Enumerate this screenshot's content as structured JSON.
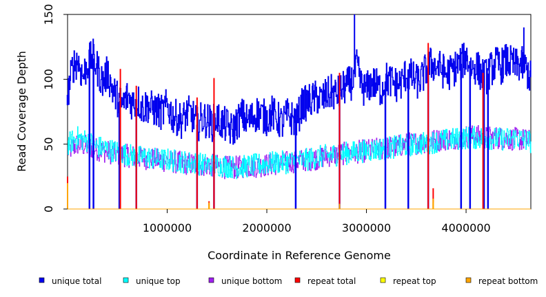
{
  "chart_data": {
    "type": "line",
    "title": "",
    "xlabel": "Coordinate in Reference Genome",
    "ylabel": "Read Coverage Depth",
    "xlim": [
      0,
      4650000
    ],
    "ylim": [
      0,
      150
    ],
    "x_ticks": [
      1000000,
      2000000,
      3000000,
      4000000
    ],
    "x_tick_labels": [
      "1000000",
      "2000000",
      "3000000",
      "4000000"
    ],
    "y_ticks": [
      0,
      50,
      100,
      150
    ],
    "y_tick_labels": [
      "0",
      "50",
      "100",
      "150"
    ],
    "grid": false,
    "legend_position": "bottom",
    "series": [
      {
        "name": "unique total",
        "color": "#0000ee",
        "points": [
          [
            0,
            88
          ],
          [
            50000,
            110
          ],
          [
            100000,
            115
          ],
          [
            150000,
            102
          ],
          [
            200000,
            112
          ],
          [
            250000,
            118
          ],
          [
            300000,
            108
          ],
          [
            350000,
            98
          ],
          [
            400000,
            105
          ],
          [
            450000,
            92
          ],
          [
            500000,
            85
          ],
          [
            550000,
            80
          ],
          [
            600000,
            87
          ],
          [
            650000,
            82
          ],
          [
            700000,
            84
          ],
          [
            750000,
            78
          ],
          [
            800000,
            80
          ],
          [
            850000,
            77
          ],
          [
            900000,
            76
          ],
          [
            950000,
            74
          ],
          [
            1000000,
            80
          ],
          [
            1050000,
            72
          ],
          [
            1100000,
            70
          ],
          [
            1150000,
            68
          ],
          [
            1200000,
            74
          ],
          [
            1250000,
            72
          ],
          [
            1300000,
            65
          ],
          [
            1350000,
            70
          ],
          [
            1400000,
            68
          ],
          [
            1450000,
            66
          ],
          [
            1500000,
            70
          ],
          [
            1550000,
            66
          ],
          [
            1600000,
            64
          ],
          [
            1650000,
            60
          ],
          [
            1700000,
            67
          ],
          [
            1750000,
            72
          ],
          [
            1800000,
            68
          ],
          [
            1850000,
            70
          ],
          [
            1900000,
            74
          ],
          [
            1950000,
            72
          ],
          [
            2000000,
            70
          ],
          [
            2050000,
            74
          ],
          [
            2100000,
            70
          ],
          [
            2150000,
            66
          ],
          [
            2200000,
            72
          ],
          [
            2250000,
            70
          ],
          [
            2300000,
            68
          ],
          [
            2350000,
            80
          ],
          [
            2400000,
            82
          ],
          [
            2450000,
            84
          ],
          [
            2500000,
            86
          ],
          [
            2550000,
            84
          ],
          [
            2600000,
            88
          ],
          [
            2650000,
            90
          ],
          [
            2700000,
            88
          ],
          [
            2750000,
            92
          ],
          [
            2800000,
            95
          ],
          [
            2850000,
            98
          ],
          [
            2900000,
            110
          ],
          [
            2950000,
            94
          ],
          [
            3000000,
            92
          ],
          [
            3050000,
            98
          ],
          [
            3100000,
            95
          ],
          [
            3150000,
            92
          ],
          [
            3200000,
            100
          ],
          [
            3250000,
            98
          ],
          [
            3300000,
            96
          ],
          [
            3350000,
            97
          ],
          [
            3400000,
            105
          ],
          [
            3450000,
            102
          ],
          [
            3500000,
            98
          ],
          [
            3550000,
            100
          ],
          [
            3600000,
            108
          ],
          [
            3650000,
            112
          ],
          [
            3700000,
            110
          ],
          [
            3750000,
            108
          ],
          [
            3800000,
            104
          ],
          [
            3850000,
            106
          ],
          [
            3900000,
            110
          ],
          [
            3950000,
            112
          ],
          [
            4000000,
            118
          ],
          [
            4050000,
            108
          ],
          [
            4100000,
            110
          ],
          [
            4150000,
            104
          ],
          [
            4200000,
            102
          ],
          [
            4250000,
            108
          ],
          [
            4300000,
            112
          ],
          [
            4350000,
            110
          ],
          [
            4400000,
            114
          ],
          [
            4450000,
            112
          ],
          [
            4500000,
            110
          ],
          [
            4550000,
            112
          ],
          [
            4600000,
            108
          ],
          [
            4650000,
            100
          ]
        ],
        "dropouts": [
          [
            0,
            80
          ],
          [
            220000,
            0
          ],
          [
            260000,
            0
          ],
          [
            520000,
            0
          ],
          [
            690000,
            0
          ],
          [
            1300000,
            0
          ],
          [
            1470000,
            0
          ],
          [
            2290000,
            0
          ],
          [
            2730000,
            0
          ],
          [
            3190000,
            0
          ],
          [
            3420000,
            0
          ],
          [
            3620000,
            0
          ],
          [
            3950000,
            0
          ],
          [
            4040000,
            0
          ],
          [
            4180000,
            0
          ],
          [
            4220000,
            0
          ]
        ],
        "spikes": [
          [
            2880000,
            150
          ],
          [
            3620000,
            120
          ],
          [
            4580000,
            140
          ]
        ]
      },
      {
        "name": "unique top",
        "color": "#00ffff",
        "points": [
          [
            0,
            50
          ],
          [
            100000,
            55
          ],
          [
            200000,
            52
          ],
          [
            300000,
            48
          ],
          [
            400000,
            46
          ],
          [
            500000,
            44
          ],
          [
            600000,
            42
          ],
          [
            700000,
            40
          ],
          [
            800000,
            40
          ],
          [
            900000,
            38
          ],
          [
            1000000,
            38
          ],
          [
            1100000,
            37
          ],
          [
            1200000,
            36
          ],
          [
            1300000,
            35
          ],
          [
            1400000,
            34
          ],
          [
            1500000,
            34
          ],
          [
            1600000,
            33
          ],
          [
            1700000,
            32
          ],
          [
            1800000,
            33
          ],
          [
            1900000,
            34
          ],
          [
            2000000,
            35
          ],
          [
            2100000,
            36
          ],
          [
            2200000,
            36
          ],
          [
            2300000,
            37
          ],
          [
            2400000,
            38
          ],
          [
            2500000,
            40
          ],
          [
            2600000,
            41
          ],
          [
            2700000,
            42
          ],
          [
            2800000,
            43
          ],
          [
            2900000,
            44
          ],
          [
            3000000,
            45
          ],
          [
            3100000,
            46
          ],
          [
            3200000,
            47
          ],
          [
            3300000,
            48
          ],
          [
            3400000,
            49
          ],
          [
            3500000,
            50
          ],
          [
            3600000,
            51
          ],
          [
            3700000,
            52
          ],
          [
            3800000,
            53
          ],
          [
            3900000,
            54
          ],
          [
            4000000,
            55
          ],
          [
            4100000,
            55
          ],
          [
            4200000,
            55
          ],
          [
            4300000,
            54
          ],
          [
            4400000,
            54
          ],
          [
            4500000,
            55
          ],
          [
            4600000,
            53
          ],
          [
            4650000,
            52
          ]
        ]
      },
      {
        "name": "unique bottom",
        "color": "#a020f0",
        "points": [
          [
            0,
            45
          ],
          [
            100000,
            50
          ],
          [
            200000,
            48
          ],
          [
            300000,
            46
          ],
          [
            400000,
            44
          ],
          [
            500000,
            42
          ],
          [
            600000,
            41
          ],
          [
            700000,
            40
          ],
          [
            800000,
            39
          ],
          [
            900000,
            38
          ],
          [
            1000000,
            37
          ],
          [
            1100000,
            36
          ],
          [
            1200000,
            35
          ],
          [
            1300000,
            34
          ],
          [
            1400000,
            34
          ],
          [
            1500000,
            33
          ],
          [
            1600000,
            32
          ],
          [
            1700000,
            32
          ],
          [
            1800000,
            33
          ],
          [
            1900000,
            33
          ],
          [
            2000000,
            34
          ],
          [
            2100000,
            35
          ],
          [
            2200000,
            36
          ],
          [
            2300000,
            37
          ],
          [
            2400000,
            38
          ],
          [
            2500000,
            39
          ],
          [
            2600000,
            41
          ],
          [
            2700000,
            42
          ],
          [
            2800000,
            43
          ],
          [
            2900000,
            44
          ],
          [
            3000000,
            45
          ],
          [
            3100000,
            46
          ],
          [
            3200000,
            47
          ],
          [
            3300000,
            48
          ],
          [
            3400000,
            50
          ],
          [
            3500000,
            51
          ],
          [
            3600000,
            52
          ],
          [
            3700000,
            53
          ],
          [
            3800000,
            54
          ],
          [
            3900000,
            55
          ],
          [
            4000000,
            56
          ],
          [
            4100000,
            56
          ],
          [
            4200000,
            55
          ],
          [
            4300000,
            55
          ],
          [
            4400000,
            54
          ],
          [
            4500000,
            54
          ],
          [
            4600000,
            53
          ],
          [
            4650000,
            52
          ]
        ]
      },
      {
        "name": "repeat total",
        "color": "#ff0000",
        "points": [
          [
            0,
            0
          ],
          [
            4650000,
            0
          ]
        ],
        "spikes": [
          [
            0,
            25
          ],
          [
            530000,
            108
          ],
          [
            690000,
            95
          ],
          [
            1300000,
            86
          ],
          [
            1420000,
            6
          ],
          [
            1470000,
            101
          ],
          [
            2730000,
            105
          ],
          [
            3620000,
            128
          ],
          [
            3670000,
            16
          ],
          [
            4170000,
            105
          ]
        ]
      },
      {
        "name": "repeat top",
        "color": "#ffff00",
        "points": [
          [
            0,
            0
          ],
          [
            4650000,
            0
          ]
        ],
        "spikes": [
          [
            0,
            10
          ],
          [
            1420000,
            3
          ],
          [
            3670000,
            5
          ]
        ]
      },
      {
        "name": "repeat bottom",
        "color": "#ffa500",
        "points": [
          [
            0,
            0
          ],
          [
            4650000,
            0
          ]
        ],
        "spikes": [
          [
            0,
            20
          ],
          [
            1420000,
            5
          ],
          [
            2730000,
            4
          ],
          [
            3670000,
            8
          ]
        ]
      }
    ]
  }
}
